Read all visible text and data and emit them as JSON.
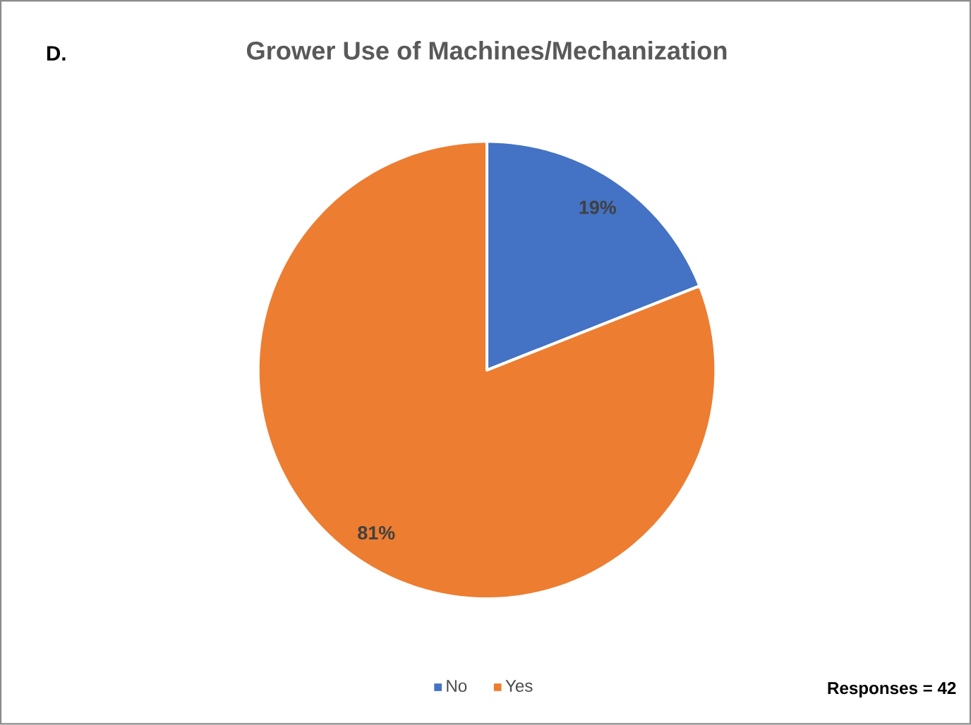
{
  "chart_data": {
    "type": "pie",
    "title": "Grower Use of Machines/Mechanization",
    "categories": [
      "No",
      "Yes"
    ],
    "values": [
      19,
      81
    ],
    "colors": [
      "#4472c4",
      "#ed7d31"
    ],
    "value_labels": [
      "19%",
      "81%"
    ],
    "legend": "bottom",
    "annotations": [
      "D.",
      "Responses = 42"
    ]
  }
}
